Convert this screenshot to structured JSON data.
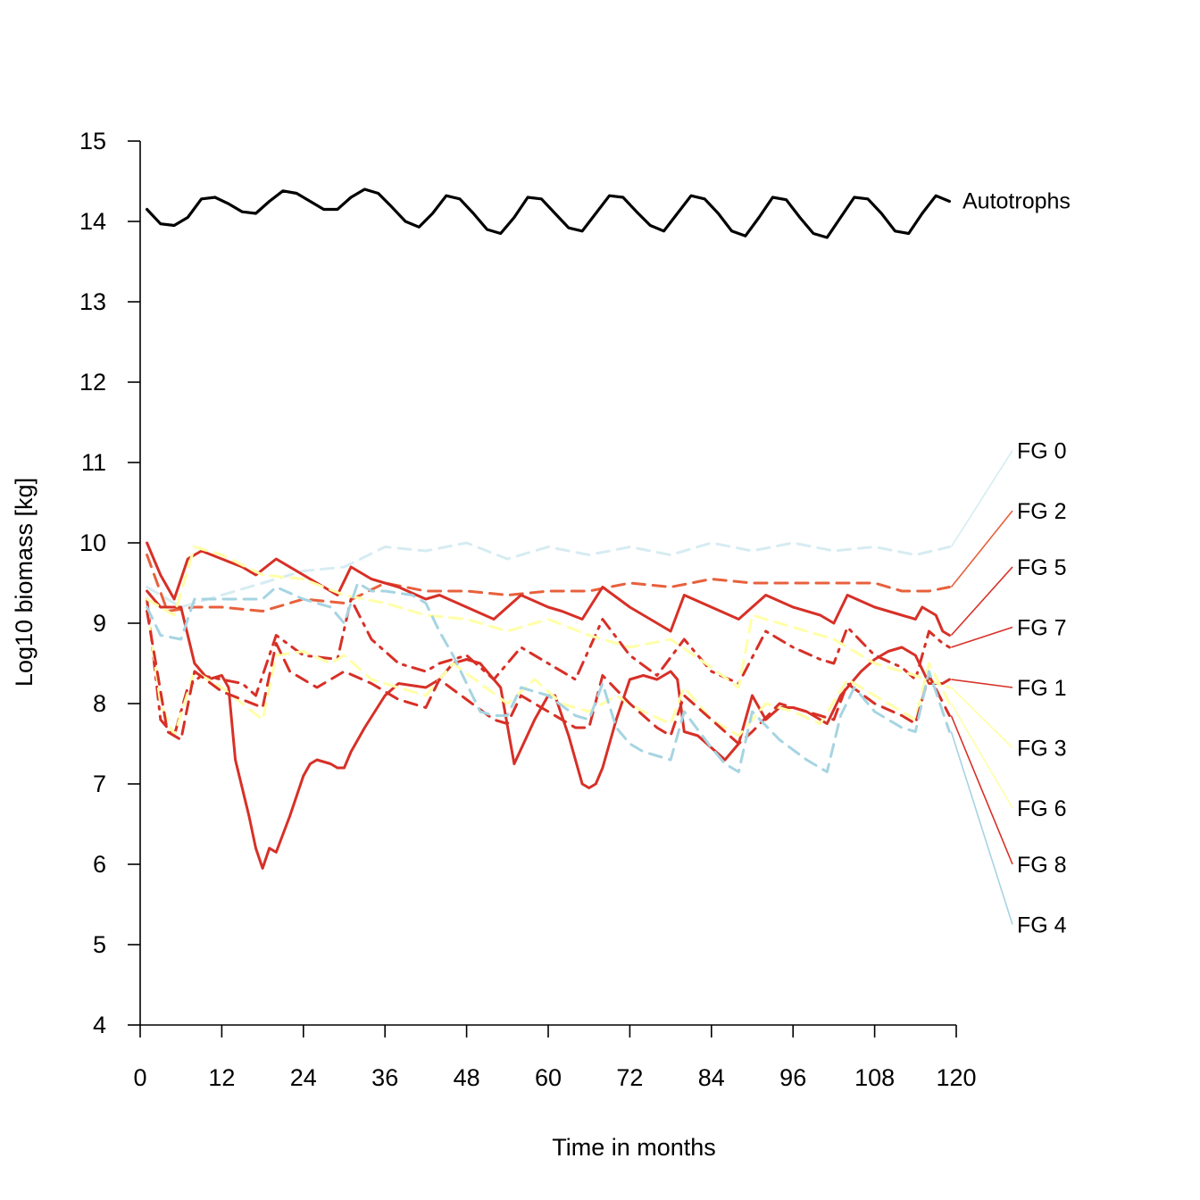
{
  "chart_data": {
    "type": "line",
    "title": "",
    "xlabel": "Time in months",
    "ylabel": "Log10 biomass [kg]",
    "xlim": [
      0,
      120
    ],
    "ylim": [
      4,
      15
    ],
    "x_ticks": [
      0,
      12,
      24,
      36,
      48,
      60,
      72,
      84,
      96,
      108,
      120
    ],
    "y_ticks": [
      4,
      5,
      6,
      7,
      8,
      9,
      10,
      11,
      12,
      13,
      14,
      15
    ],
    "grid": false,
    "legend": "direct labels at right",
    "series": [
      {
        "name": "FG 0",
        "color": "#d6ecf2",
        "dash": "dashed",
        "label_y": 11.15,
        "x": [
          1,
          6,
          12,
          18,
          24,
          30,
          36,
          42,
          48,
          54,
          60,
          66,
          72,
          78,
          84,
          90,
          96,
          102,
          108,
          114,
          119
        ],
        "y": [
          9.45,
          9.2,
          9.35,
          9.5,
          9.65,
          9.7,
          9.95,
          9.9,
          10.0,
          9.8,
          9.95,
          9.85,
          9.95,
          9.85,
          10.0,
          9.9,
          10.0,
          9.9,
          9.95,
          9.85,
          9.95
        ]
      },
      {
        "name": "FG 2",
        "color": "#e8603c",
        "dash": "dashed",
        "label_y": 10.4,
        "x": [
          1,
          4,
          8,
          12,
          18,
          24,
          30,
          36,
          42,
          48,
          54,
          60,
          66,
          72,
          78,
          84,
          90,
          96,
          102,
          108,
          112,
          116,
          119
        ],
        "y": [
          9.85,
          9.15,
          9.2,
          9.2,
          9.15,
          9.3,
          9.25,
          9.5,
          9.4,
          9.4,
          9.35,
          9.4,
          9.4,
          9.5,
          9.45,
          9.55,
          9.5,
          9.5,
          9.5,
          9.5,
          9.4,
          9.4,
          9.45
        ]
      },
      {
        "name": "FG 5",
        "color": "#d73027",
        "dash": "solid",
        "label_y": 9.7,
        "x": [
          1,
          3,
          5,
          7,
          9,
          12,
          15,
          17,
          20,
          24,
          28,
          29,
          31,
          34,
          38,
          42,
          44,
          48,
          52,
          56,
          60,
          62,
          65,
          68,
          72,
          76,
          78,
          80,
          84,
          88,
          92,
          96,
          100,
          102,
          104,
          108,
          112,
          114,
          115,
          117,
          118,
          119
        ],
        "y": [
          10.0,
          9.6,
          9.3,
          9.8,
          9.9,
          9.8,
          9.7,
          9.6,
          9.8,
          9.6,
          9.4,
          9.35,
          9.7,
          9.55,
          9.45,
          9.3,
          9.35,
          9.2,
          9.05,
          9.35,
          9.2,
          9.15,
          9.05,
          9.45,
          9.2,
          9.0,
          8.9,
          9.35,
          9.2,
          9.05,
          9.35,
          9.2,
          9.1,
          9.0,
          9.35,
          9.2,
          9.1,
          9.05,
          9.2,
          9.1,
          8.9,
          8.85
        ]
      },
      {
        "name": "FG 7",
        "color": "#d73027",
        "dash": "dashdot",
        "label_y": 8.95,
        "x": [
          1,
          3,
          5,
          7,
          9,
          12,
          15,
          17,
          20,
          24,
          29,
          31,
          34,
          38,
          42,
          44,
          48,
          52,
          56,
          60,
          64,
          68,
          72,
          76,
          80,
          84,
          88,
          92,
          96,
          100,
          102,
          104,
          108,
          112,
          114,
          116,
          118,
          119
        ],
        "y": [
          9.3,
          7.8,
          7.6,
          8.2,
          8.35,
          8.3,
          8.25,
          8.1,
          8.85,
          8.6,
          8.55,
          9.3,
          8.8,
          8.5,
          8.4,
          8.5,
          8.6,
          8.3,
          8.7,
          8.5,
          8.3,
          9.05,
          8.6,
          8.35,
          8.8,
          8.4,
          8.25,
          8.9,
          8.7,
          8.55,
          8.5,
          8.95,
          8.6,
          8.45,
          8.3,
          8.9,
          8.75,
          8.7
        ]
      },
      {
        "name": "FG 1",
        "color": "#d73027",
        "dash": "solid",
        "label_y": 8.2,
        "x": [
          1,
          3,
          6,
          8,
          10,
          12,
          13,
          14,
          16,
          17,
          18,
          19,
          20,
          22,
          24,
          25,
          26,
          28,
          29,
          30,
          31,
          33,
          36,
          38,
          42,
          44,
          46,
          48,
          50,
          52,
          53,
          55,
          58,
          60,
          61,
          63,
          65,
          66,
          67,
          68,
          70,
          72,
          74,
          76,
          78,
          79,
          80,
          82,
          84,
          86,
          88,
          90,
          92,
          94,
          96,
          98,
          100,
          101,
          103,
          104,
          106,
          108,
          110,
          112,
          114,
          116,
          118,
          119
        ],
        "y": [
          9.4,
          9.2,
          9.2,
          8.5,
          8.3,
          8.35,
          8.2,
          7.3,
          6.6,
          6.2,
          5.95,
          6.2,
          6.15,
          6.6,
          7.1,
          7.25,
          7.3,
          7.25,
          7.2,
          7.2,
          7.4,
          7.7,
          8.1,
          8.25,
          8.2,
          8.3,
          8.5,
          8.55,
          8.5,
          8.3,
          8.2,
          7.25,
          7.8,
          8.1,
          8.1,
          7.6,
          7.0,
          6.95,
          7.0,
          7.2,
          7.8,
          8.3,
          8.35,
          8.3,
          8.4,
          8.3,
          7.65,
          7.6,
          7.45,
          7.3,
          7.5,
          8.1,
          7.8,
          7.95,
          7.95,
          7.9,
          7.8,
          7.75,
          8.1,
          8.2,
          8.4,
          8.55,
          8.65,
          8.7,
          8.6,
          8.25,
          8.25,
          8.3
        ]
      },
      {
        "name": "FG 3",
        "color": "#ffffa8",
        "dash": "dashed",
        "label_y": 7.45,
        "x": [
          1,
          5,
          8,
          12,
          18,
          24,
          30,
          36,
          42,
          48,
          54,
          60,
          66,
          72,
          78,
          84,
          88,
          90,
          96,
          102,
          108,
          114,
          119
        ],
        "y": [
          9.3,
          9.1,
          9.95,
          9.85,
          9.6,
          9.55,
          9.35,
          9.25,
          9.1,
          9.05,
          8.9,
          9.05,
          8.85,
          8.7,
          8.8,
          8.45,
          8.2,
          9.1,
          8.95,
          8.8,
          8.5,
          8.35,
          8.2
        ]
      },
      {
        "name": "FG 6",
        "color": "#ffffa8",
        "dash": "dashed",
        "label_y": 6.7,
        "x": [
          1,
          3,
          5,
          8,
          12,
          18,
          20,
          24,
          28,
          30,
          34,
          38,
          42,
          46,
          50,
          54,
          58,
          62,
          66,
          70,
          74,
          78,
          80,
          84,
          88,
          92,
          96,
          100,
          104,
          108,
          114,
          116,
          119
        ],
        "y": [
          9.2,
          8.0,
          7.6,
          8.4,
          8.2,
          7.8,
          8.6,
          8.65,
          8.5,
          8.6,
          8.3,
          8.2,
          8.1,
          8.5,
          8.25,
          8.0,
          8.3,
          8.0,
          7.9,
          8.1,
          7.9,
          7.75,
          8.2,
          7.8,
          7.6,
          8.0,
          7.9,
          7.75,
          8.3,
          8.1,
          7.8,
          8.5,
          8.0
        ]
      },
      {
        "name": "FG 8",
        "color": "#d73027",
        "dash": "dashed",
        "label_y": 6.0,
        "x": [
          1,
          4,
          6,
          8,
          12,
          18,
          20,
          22,
          26,
          30,
          34,
          38,
          42,
          44,
          48,
          52,
          54,
          56,
          60,
          64,
          66,
          68,
          72,
          76,
          78,
          80,
          84,
          88,
          90,
          94,
          98,
          102,
          104,
          108,
          112,
          114,
          116,
          119
        ],
        "y": [
          9.15,
          7.65,
          7.55,
          8.4,
          8.15,
          7.95,
          8.75,
          8.4,
          8.2,
          8.4,
          8.25,
          8.05,
          7.95,
          8.3,
          8.05,
          7.8,
          7.75,
          8.1,
          7.9,
          7.7,
          7.7,
          8.35,
          8.0,
          7.7,
          7.6,
          8.1,
          7.8,
          7.5,
          7.65,
          8.0,
          7.9,
          7.8,
          8.25,
          8.0,
          7.85,
          7.75,
          8.35,
          7.85
        ]
      },
      {
        "name": "FG 4",
        "color": "#a6d4e2",
        "dash": "dashed",
        "label_y": 5.25,
        "x": [
          1,
          3,
          6,
          8,
          12,
          18,
          20,
          24,
          28,
          30,
          32,
          34,
          36,
          40,
          42,
          44,
          46,
          48,
          50,
          52,
          54,
          56,
          60,
          64,
          66,
          68,
          70,
          72,
          74,
          76,
          78,
          80,
          84,
          86,
          88,
          90,
          94,
          98,
          101,
          103,
          105,
          108,
          112,
          114,
          116,
          119
        ],
        "y": [
          9.2,
          8.85,
          8.8,
          9.3,
          9.3,
          9.3,
          9.45,
          9.3,
          9.2,
          9.0,
          9.5,
          9.4,
          9.4,
          9.35,
          9.25,
          8.9,
          8.6,
          8.25,
          7.9,
          7.85,
          7.85,
          8.2,
          8.1,
          7.85,
          7.8,
          8.25,
          7.7,
          7.5,
          7.4,
          7.35,
          7.3,
          7.9,
          7.45,
          7.25,
          7.15,
          7.9,
          7.55,
          7.3,
          7.15,
          7.85,
          8.2,
          7.9,
          7.7,
          7.65,
          8.4,
          7.65
        ]
      },
      {
        "name": "Autotrophs",
        "color": "#000000",
        "dash": "solid",
        "label_y": 14.27,
        "x": [
          1,
          3,
          5,
          7,
          9,
          11,
          13,
          15,
          17,
          19,
          21,
          23,
          25,
          27,
          29,
          31,
          33,
          35,
          37,
          39,
          41,
          43,
          45,
          47,
          49,
          51,
          53,
          55,
          57,
          59,
          61,
          63,
          65,
          67,
          69,
          71,
          73,
          75,
          77,
          79,
          81,
          83,
          85,
          87,
          89,
          91,
          93,
          95,
          97,
          99,
          101,
          103,
          105,
          107,
          109,
          111,
          113,
          115,
          117,
          119
        ],
        "y": [
          14.15,
          13.97,
          13.95,
          14.05,
          14.28,
          14.3,
          14.22,
          14.12,
          14.1,
          14.25,
          14.38,
          14.35,
          14.25,
          14.15,
          14.15,
          14.3,
          14.4,
          14.35,
          14.18,
          14.0,
          13.93,
          14.1,
          14.32,
          14.28,
          14.1,
          13.9,
          13.85,
          14.05,
          14.3,
          14.28,
          14.1,
          13.92,
          13.88,
          14.1,
          14.32,
          14.3,
          14.12,
          13.95,
          13.88,
          14.1,
          14.32,
          14.28,
          14.1,
          13.88,
          13.82,
          14.05,
          14.3,
          14.27,
          14.05,
          13.85,
          13.8,
          14.05,
          14.3,
          14.28,
          14.1,
          13.88,
          13.85,
          14.1,
          14.32,
          14.25
        ]
      }
    ]
  }
}
